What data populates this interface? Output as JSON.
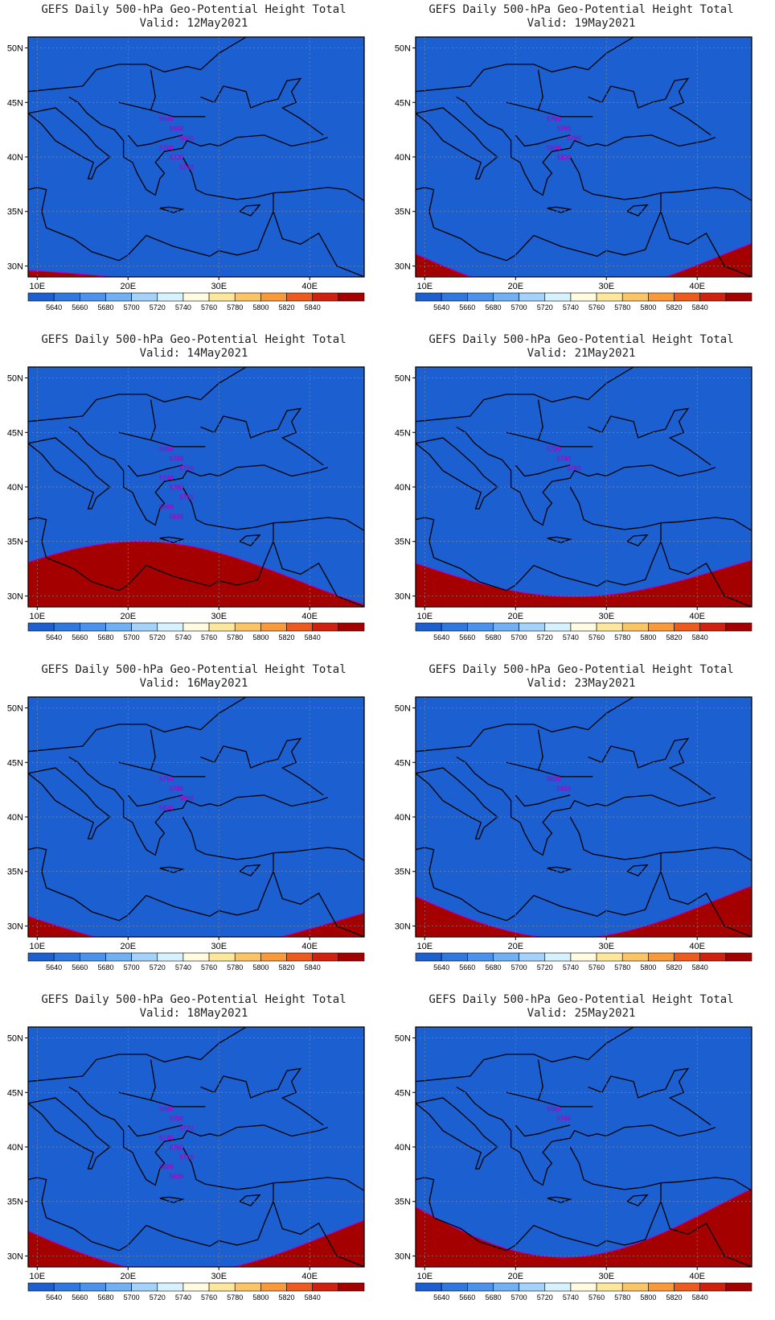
{
  "title": "GEFS Daily 500-hPa Geo-Potential Height Total",
  "axes": {
    "lat_labels": [
      "50N",
      "45N",
      "40N",
      "35N",
      "30N"
    ],
    "lon_labels": [
      "10E",
      "20E",
      "30E",
      "40E"
    ]
  },
  "colorbar": {
    "levels": [
      "5640",
      "5660",
      "5680",
      "5700",
      "5720",
      "5740",
      "5760",
      "5780",
      "5800",
      "5820",
      "5840"
    ],
    "colors": [
      "#1c5fd0",
      "#2e78e0",
      "#4a92ec",
      "#70b0f4",
      "#a4d2fb",
      "#d6f2ff",
      "#fffbe0",
      "#fde79a",
      "#fbc465",
      "#f99a3a",
      "#ec5a1e",
      "#d0200e",
      "#a40000"
    ]
  },
  "panels": [
    {
      "valid": "Valid: 12May2021",
      "base": 36.0,
      "amp": 0.5,
      "spacing": 1.2,
      "labels": [
        "5640",
        "5660",
        "5680",
        "5700",
        "5720",
        "5740"
      ]
    },
    {
      "valid": "Valid: 19May2021",
      "base": 37.0,
      "amp": 4.0,
      "spacing": 1.0,
      "labels": [
        "5700",
        "5760",
        "5780",
        "5800",
        "5820"
      ]
    },
    {
      "valid": "Valid: 14May2021",
      "base": 37.0,
      "amp": -3.0,
      "spacing": 0.9,
      "labels": [
        "5680",
        "5700",
        "5720",
        "5740",
        "5760",
        "5780",
        "5800",
        "5820"
      ]
    },
    {
      "valid": "Valid: 21May2021",
      "base": 37.5,
      "amp": 3.0,
      "spacing": 0.8,
      "labels": [
        "5720",
        "5740",
        "5760"
      ]
    },
    {
      "valid": "Valid: 16May2021",
      "base": 36.0,
      "amp": 3.0,
      "spacing": 0.9,
      "labels": [
        "5760",
        "5780",
        "5800",
        "5820"
      ]
    },
    {
      "valid": "Valid: 23May2021",
      "base": 38.0,
      "amp": 4.0,
      "spacing": 0.9,
      "labels": [
        "5800",
        "5820"
      ]
    },
    {
      "valid": "Valid: 18May2021",
      "base": 37.0,
      "amp": 4.0,
      "spacing": 0.8,
      "labels": [
        "5680",
        "5700",
        "5720",
        "5740",
        "5760",
        "5780",
        "5800",
        "5820"
      ]
    },
    {
      "valid": "Valid: 25May2021",
      "base": 40.0,
      "amp": 5.0,
      "spacing": 0.9,
      "labels": [
        "5660",
        "5760"
      ]
    }
  ]
}
